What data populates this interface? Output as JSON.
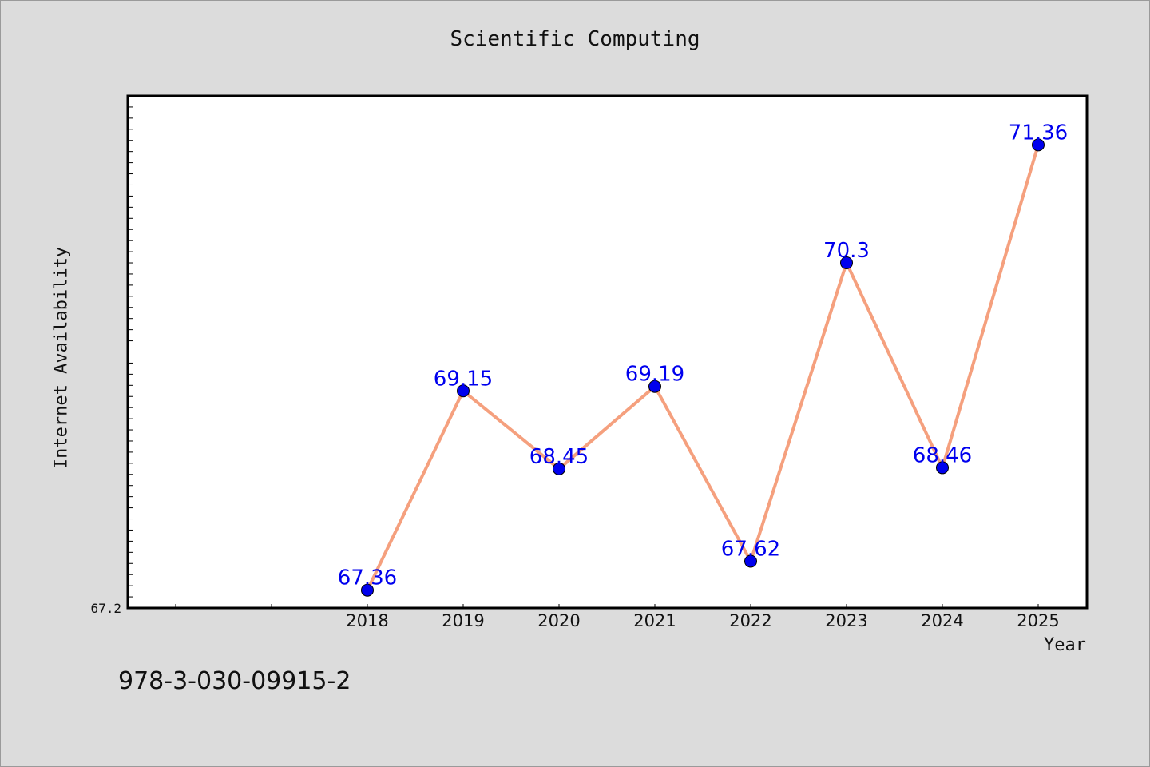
{
  "chart_data": {
    "type": "line",
    "title": "Scientific Computing",
    "xlabel": "Year",
    "ylabel": "Internet Availability",
    "x": [
      "2018",
      "2019",
      "2020",
      "2021",
      "2022",
      "2023",
      "2024",
      "2025"
    ],
    "series": [
      {
        "values": [
          67.36,
          69.15,
          68.45,
          69.19,
          67.62,
          70.3,
          68.46,
          71.36
        ]
      }
    ],
    "data_labels": [
      "67.36",
      "69.15",
      "68.45",
      "69.19",
      "67.62",
      "70.3",
      "68.46",
      "71.36"
    ],
    "y_tick_labels": [
      "67.2"
    ],
    "ylim": [
      67.2,
      71.8
    ],
    "grid": false,
    "colors": {
      "line": "#f5a07e",
      "marker": "#0000ee",
      "label": "#0000ee",
      "background": "#dcdcdc",
      "plot_area": "#ffffff"
    }
  },
  "footnote": "978-3-030-09915-2"
}
